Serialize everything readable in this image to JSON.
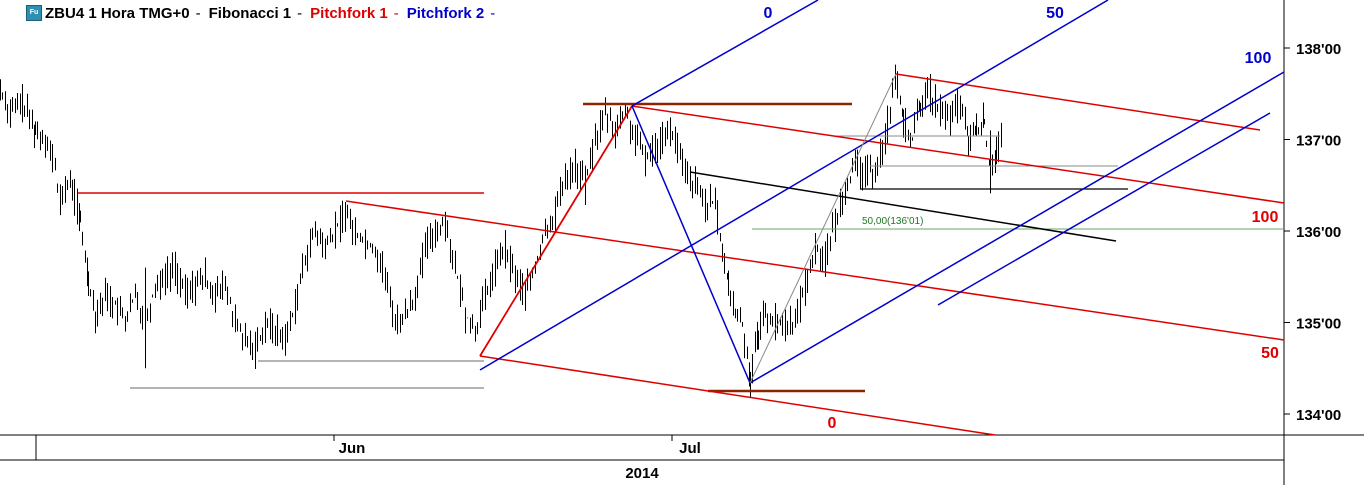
{
  "header": {
    "symbol": "ZBU4 1 Hora TMG+0",
    "study1": "Fibonacci 1",
    "study2": "Pitchfork 1",
    "study3": "Pitchfork 2",
    "separator": "-"
  },
  "colors": {
    "red": "#dd0000",
    "blue": "#0000cc",
    "brown": "#8b2500",
    "black": "#000000",
    "gray": "#888888",
    "green": "#66aa66"
  },
  "chart_data": {
    "type": "candlestick",
    "ylim": [
      133.6,
      138.5
    ],
    "y_ticks": [
      "138'00",
      "137'00",
      "136'00",
      "135'00",
      "134'00"
    ],
    "y_tick_values": [
      138,
      137,
      136,
      135,
      134
    ],
    "x_labels": [
      "Jun",
      "Jul"
    ],
    "year_label": "2014",
    "fib_label": "50,00(136'01)",
    "fib_value": 136.03,
    "pitchfork1_labels": [
      "0",
      "50",
      "100"
    ],
    "pitchfork2_labels": [
      "0",
      "50",
      "100"
    ],
    "price_path": [
      [
        0,
        137.55
      ],
      [
        10,
        137.3
      ],
      [
        22,
        137.4
      ],
      [
        35,
        137.1
      ],
      [
        45,
        137.0
      ],
      [
        55,
        136.7
      ],
      [
        60,
        136.3
      ],
      [
        65,
        136.5
      ],
      [
        72,
        136.5
      ],
      [
        80,
        136.1
      ],
      [
        88,
        135.5
      ],
      [
        95,
        135.1
      ],
      [
        105,
        135.3
      ],
      [
        115,
        135.2
      ],
      [
        125,
        135.0
      ],
      [
        135,
        135.3
      ],
      [
        145,
        135.0
      ],
      [
        155,
        135.4
      ],
      [
        165,
        135.5
      ],
      [
        175,
        135.6
      ],
      [
        185,
        135.3
      ],
      [
        195,
        135.4
      ],
      [
        205,
        135.5
      ],
      [
        215,
        135.3
      ],
      [
        225,
        135.4
      ],
      [
        235,
        135.0
      ],
      [
        245,
        134.8
      ],
      [
        255,
        134.7
      ],
      [
        265,
        135.0
      ],
      [
        275,
        134.9
      ],
      [
        285,
        134.8
      ],
      [
        295,
        135.2
      ],
      [
        305,
        135.7
      ],
      [
        315,
        136.0
      ],
      [
        325,
        135.8
      ],
      [
        335,
        136.0
      ],
      [
        345,
        136.2
      ],
      [
        355,
        136.0
      ],
      [
        365,
        135.9
      ],
      [
        375,
        135.8
      ],
      [
        385,
        135.5
      ],
      [
        395,
        135.0
      ],
      [
        405,
        135.1
      ],
      [
        415,
        135.3
      ],
      [
        425,
        135.8
      ],
      [
        435,
        136.0
      ],
      [
        445,
        136.1
      ],
      [
        455,
        135.6
      ],
      [
        465,
        135.1
      ],
      [
        475,
        134.9
      ],
      [
        485,
        135.3
      ],
      [
        495,
        135.6
      ],
      [
        505,
        135.8
      ],
      [
        515,
        135.5
      ],
      [
        525,
        135.3
      ],
      [
        535,
        135.6
      ],
      [
        545,
        136.0
      ],
      [
        555,
        136.2
      ],
      [
        565,
        136.6
      ],
      [
        575,
        136.7
      ],
      [
        585,
        136.5
      ],
      [
        595,
        137.0
      ],
      [
        605,
        137.3
      ],
      [
        615,
        137.1
      ],
      [
        625,
        137.3
      ],
      [
        635,
        137.0
      ],
      [
        645,
        136.8
      ],
      [
        655,
        136.9
      ],
      [
        665,
        137.1
      ],
      [
        675,
        137.0
      ],
      [
        685,
        136.6
      ],
      [
        695,
        136.5
      ],
      [
        705,
        136.3
      ],
      [
        715,
        136.3
      ],
      [
        722,
        135.8
      ],
      [
        728,
        135.4
      ],
      [
        735,
        135.1
      ],
      [
        742,
        135.0
      ],
      [
        750,
        134.4
      ],
      [
        758,
        134.9
      ],
      [
        765,
        135.1
      ],
      [
        775,
        135.0
      ],
      [
        785,
        135.0
      ],
      [
        795,
        135.0
      ],
      [
        805,
        135.4
      ],
      [
        815,
        135.8
      ],
      [
        825,
        135.7
      ],
      [
        835,
        136.1
      ],
      [
        845,
        136.5
      ],
      [
        855,
        136.7
      ],
      [
        865,
        136.6
      ],
      [
        875,
        136.7
      ],
      [
        885,
        137.0
      ],
      [
        895,
        137.7
      ],
      [
        903,
        137.2
      ],
      [
        912,
        137.0
      ],
      [
        920,
        137.4
      ],
      [
        930,
        137.5
      ],
      [
        940,
        137.3
      ],
      [
        950,
        137.2
      ],
      [
        960,
        137.4
      ],
      [
        968,
        137.0
      ],
      [
        976,
        137.1
      ],
      [
        984,
        137.2
      ],
      [
        990,
        136.6
      ],
      [
        996,
        136.9
      ],
      [
        1003,
        137.0
      ]
    ]
  }
}
